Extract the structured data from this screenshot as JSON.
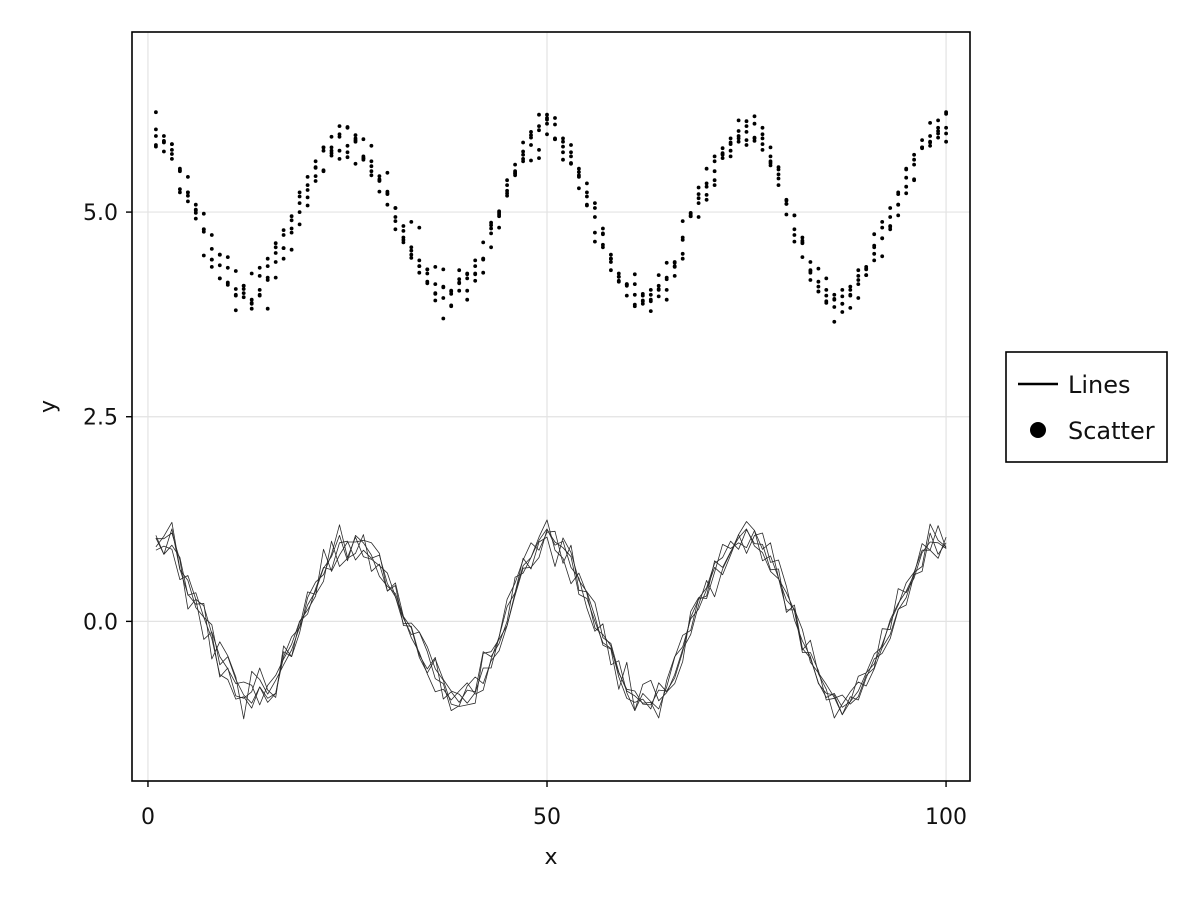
{
  "chart_data": {
    "type": "scatter",
    "title": "",
    "xlabel": "x",
    "ylabel": "y",
    "xlim": [
      -2,
      103
    ],
    "ylim": [
      -1.95,
      7.2
    ],
    "x_ticks": [
      0,
      50,
      100
    ],
    "x_tick_labels": [
      "0",
      "50",
      "100"
    ],
    "y_ticks": [
      0.0,
      2.5,
      5.0
    ],
    "y_tick_labels": [
      "0.0",
      "2.5",
      "5.0"
    ],
    "grid": true,
    "legend": {
      "placement": "right",
      "entries": [
        {
          "label": "Lines",
          "marker": "line"
        },
        {
          "label": "Scatter",
          "marker": "circle"
        }
      ]
    },
    "x": [
      1,
      2,
      3,
      4,
      5,
      6,
      7,
      8,
      9,
      10,
      11,
      12,
      13,
      14,
      15,
      16,
      17,
      18,
      19,
      20,
      21,
      22,
      23,
      24,
      25,
      26,
      27,
      28,
      29,
      30,
      31,
      32,
      33,
      34,
      35,
      36,
      37,
      38,
      39,
      40,
      41,
      42,
      43,
      44,
      45,
      46,
      47,
      48,
      49,
      50,
      51,
      52,
      53,
      54,
      55,
      56,
      57,
      58,
      59,
      60,
      61,
      62,
      63,
      64,
      65,
      66,
      67,
      68,
      69,
      70,
      71,
      72,
      73,
      74,
      75,
      76,
      77,
      78,
      79,
      80,
      81,
      82,
      83,
      84,
      85,
      86,
      87,
      88,
      89,
      90,
      91,
      92,
      93,
      94,
      95,
      96,
      97,
      98,
      99,
      100
    ],
    "lines": {
      "name": "Lines",
      "series": [
        [
          1.05,
          0.82,
          0.93,
          0.78,
          0.32,
          0.35,
          0.05,
          -0.04,
          -0.53,
          -0.43,
          -0.71,
          -0.9,
          -1.0,
          -0.8,
          -0.99,
          -0.88,
          -0.37,
          -0.43,
          -0.14,
          0.29,
          0.48,
          0.57,
          0.82,
          1.18,
          0.78,
          1.03,
          0.79,
          0.76,
          0.68,
          0.59,
          0.3,
          -0.03,
          -0.02,
          -0.13,
          -0.31,
          -0.58,
          -0.72,
          -1.01,
          -1.04,
          -1.02,
          -1.0,
          -0.39,
          -0.37,
          -0.22,
          -0.05,
          0.35,
          0.77,
          0.64,
          0.97,
          1.03,
          0.67,
          1.02,
          0.84,
          0.5,
          0.36,
          0.06,
          -0.29,
          -0.34,
          -0.83,
          -0.5,
          -1.09,
          -0.77,
          -0.72,
          -0.97,
          -0.87,
          -0.65,
          -0.34,
          -0.16,
          0.2,
          0.5,
          0.3,
          0.64,
          0.84,
          1.06,
          1.22,
          1.11,
          0.74,
          0.8,
          0.53,
          0.14,
          0.14,
          -0.35,
          -0.23,
          -0.64,
          -0.83,
          -1.18,
          -1.01,
          -0.86,
          -0.74,
          -0.79,
          -0.58,
          -0.32,
          -0.16,
          0.15,
          0.2,
          0.57,
          0.61,
          1.08,
          0.82,
          0.96
        ],
        [
          0.91,
          1.04,
          1.21,
          0.64,
          0.33,
          0.21,
          0.22,
          -0.46,
          -0.25,
          -0.42,
          -0.68,
          -1.19,
          -0.61,
          -0.71,
          -0.89,
          -0.72,
          -0.53,
          -0.35,
          -0.07,
          0.36,
          0.33,
          0.49,
          0.98,
          0.67,
          0.77,
          0.83,
          1.06,
          0.61,
          0.7,
          0.37,
          0.44,
          -0.05,
          -0.06,
          -0.41,
          -0.58,
          -0.44,
          -0.95,
          -0.86,
          -0.99,
          -0.84,
          -0.86,
          -0.37,
          -0.43,
          -0.27,
          -0.0,
          0.54,
          0.59,
          0.78,
          1.03,
          1.24,
          0.87,
          0.77,
          0.46,
          0.59,
          0.34,
          -0.08,
          -0.16,
          -0.3,
          -0.68,
          -0.94,
          -0.99,
          -0.95,
          -1.07,
          -0.75,
          -0.86,
          -0.76,
          -0.49,
          0.12,
          0.29,
          0.28,
          0.6,
          0.94,
          0.89,
          0.96,
          0.9,
          1.11,
          0.88,
          0.96,
          0.53,
          0.26,
          0.15,
          -0.1,
          -0.5,
          -0.63,
          -0.77,
          -0.93,
          -1.14,
          -0.92,
          -0.96,
          -0.69,
          -0.46,
          -0.39,
          -0.21,
          0.14,
          0.29,
          0.6,
          0.87,
          0.87,
          0.77,
          1.03
        ],
        [
          1.01,
          1.01,
          1.08,
          0.75,
          0.15,
          0.27,
          0.19,
          -0.15,
          -0.68,
          -0.57,
          -0.91,
          -0.94,
          -0.86,
          -0.57,
          -0.84,
          -0.93,
          -0.3,
          -0.43,
          -0.0,
          0.14,
          0.31,
          0.88,
          0.61,
          0.81,
          0.97,
          0.97,
          0.99,
          0.96,
          0.83,
          0.37,
          0.47,
          0.06,
          -0.08,
          -0.44,
          -0.63,
          -0.46,
          -0.71,
          -0.85,
          -0.89,
          -1.0,
          -0.87,
          -0.57,
          -0.57,
          -0.19,
          0.27,
          0.47,
          0.75,
          0.96,
          0.87,
          1.09,
          1.1,
          0.71,
          0.93,
          0.38,
          0.36,
          0.23,
          -0.2,
          -0.27,
          -0.62,
          -0.85,
          -0.91,
          -1.0,
          -0.99,
          -1.18,
          -0.72,
          -0.43,
          -0.31,
          0.03,
          0.15,
          0.39,
          0.66,
          0.57,
          0.81,
          1.06,
          0.83,
          1.05,
          1.08,
          0.72,
          0.75,
          0.43,
          0.02,
          -0.24,
          -0.43,
          -0.76,
          -0.88,
          -0.9,
          -1.14,
          -0.98,
          -0.85,
          -0.63,
          -0.52,
          -0.28,
          -0.01,
          0.2,
          0.47,
          0.6,
          0.67,
          1.19,
          0.99,
          0.91
        ],
        [
          0.87,
          0.92,
          0.88,
          0.51,
          0.56,
          0.27,
          -0.22,
          -0.13,
          -0.43,
          -0.58,
          -0.76,
          -0.74,
          -0.78,
          -1.02,
          -0.78,
          -0.66,
          -0.46,
          -0.28,
          0.0,
          0.09,
          0.4,
          0.66,
          0.63,
          0.96,
          0.98,
          0.75,
          0.87,
          0.77,
          0.81,
          0.46,
          0.3,
          0.04,
          -0.16,
          -0.13,
          -0.37,
          -0.7,
          -0.76,
          -1.09,
          -1.03,
          -0.79,
          -0.68,
          -0.76,
          -0.48,
          -0.36,
          -0.05,
          0.32,
          0.65,
          0.66,
          0.78,
          1.12,
          0.97,
          0.9,
          0.79,
          0.33,
          0.28,
          0.0,
          -0.26,
          -0.33,
          -0.63,
          -0.83,
          -0.85,
          -1.01,
          -1.02,
          -0.84,
          -0.85,
          -0.69,
          -0.37,
          0.05,
          0.27,
          0.31,
          0.74,
          0.66,
          0.85,
          1.02,
          1.13,
          0.92,
          0.84,
          0.61,
          0.52,
          0.35,
          0.13,
          -0.38,
          -0.38,
          -0.6,
          -0.96,
          -0.94,
          -0.9,
          -1.01,
          -0.92,
          -0.66,
          -0.57,
          -0.09,
          -0.1,
          0.4,
          0.35,
          0.53,
          0.84,
          0.97,
          0.96,
          0.89
        ],
        [
          1.02,
          0.82,
          1.13,
          0.63,
          0.5,
          0.17,
          0.05,
          -0.21,
          -0.65,
          -0.71,
          -0.95,
          -0.92,
          -1.06,
          -0.8,
          -0.94,
          -0.88,
          -0.43,
          -0.19,
          -0.08,
          0.2,
          0.37,
          0.65,
          0.79,
          1.05,
          0.74,
          1.05,
          0.96,
          0.81,
          0.55,
          0.43,
          0.34,
          0.06,
          -0.2,
          -0.38,
          -0.64,
          -0.86,
          -0.83,
          -0.96,
          -0.85,
          -0.75,
          -0.89,
          -0.84,
          -0.46,
          -0.19,
          0.18,
          0.35,
          0.68,
          0.78,
          0.99,
          1.13,
          0.93,
          0.98,
          0.66,
          0.53,
          0.16,
          -0.12,
          -0.03,
          -0.53,
          -0.48,
          -0.87,
          -1.09,
          -0.88,
          -0.98,
          -1.07,
          -0.8,
          -0.44,
          -0.17,
          -0.11,
          0.28,
          0.41,
          0.71,
          0.78,
          0.98,
          0.88,
          1.12,
          0.95,
          0.94,
          0.63,
          0.64,
          0.11,
          0.2,
          -0.33,
          -0.45,
          -0.75,
          -0.93,
          -0.88,
          -1.05,
          -0.98,
          -0.67,
          -0.63,
          -0.4,
          -0.31,
          0.02,
          0.22,
          0.37,
          0.57,
          0.95,
          0.87,
          1.17,
          0.89
        ]
      ]
    },
    "scatter": {
      "name": "Scatter",
      "series": [
        [
          6.01,
          5.74,
          5.65,
          5.53,
          5.13,
          4.92,
          4.76,
          4.72,
          4.19,
          4.45,
          3.98,
          4.1,
          3.88,
          4.32,
          4.2,
          4.2,
          4.56,
          4.75,
          5.0,
          5.18,
          5.55,
          5.5,
          5.75,
          5.65,
          5.81,
          5.88,
          5.68,
          5.56,
          5.4,
          5.48,
          5.05,
          4.83,
          4.88,
          4.81,
          4.3,
          4.33,
          4.3,
          4.03,
          4.18,
          4.04,
          4.16,
          4.43,
          4.57,
          4.97,
          5.2,
          5.47,
          5.74,
          5.63,
          5.66,
          6.15,
          6.15,
          5.86,
          5.73,
          5.49,
          5.24,
          5.05,
          4.57,
          4.39,
          4.21,
          4.11,
          4.24,
          4.0,
          3.79,
          4.05,
          4.2,
          4.34,
          4.69,
          4.95,
          5.3,
          5.35,
          5.39,
          5.7,
          5.68,
          5.99,
          5.82,
          6.17,
          6.03,
          5.6,
          5.41,
          5.1,
          4.79,
          4.45,
          4.17,
          4.03,
          4.19,
          3.93,
          3.88,
          3.83,
          4.17,
          4.23,
          4.49,
          4.46,
          4.79,
          4.96,
          5.23,
          5.7,
          5.79,
          5.85,
          6.12,
          6.03
        ],
        [
          5.93,
          5.93,
          5.76,
          5.24,
          5.24,
          5.02,
          4.79,
          4.33,
          4.48,
          4.32,
          4.06,
          4.06,
          3.89,
          4.22,
          4.17,
          4.39,
          4.43,
          4.54,
          5.11,
          5.43,
          5.54,
          5.79,
          5.79,
          6.05,
          6.03,
          5.9,
          5.64,
          5.81,
          5.44,
          5.23,
          4.94,
          4.66,
          4.53,
          4.34,
          4.25,
          4.01,
          4.09,
          3.85,
          4.13,
          3.93,
          4.41,
          4.26,
          4.87,
          4.95,
          5.39,
          5.45,
          5.85,
          5.94,
          5.76,
          6.19,
          5.89,
          5.9,
          5.82,
          5.29,
          5.19,
          4.94,
          4.73,
          4.48,
          4.21,
          4.12,
          3.87,
          3.88,
          3.93,
          4.23,
          3.93,
          4.38,
          4.66,
          4.98,
          5.22,
          5.21,
          5.62,
          5.71,
          5.75,
          5.93,
          6.11,
          5.91,
          5.95,
          5.62,
          5.46,
          5.14,
          4.96,
          4.69,
          4.29,
          4.03,
          3.89,
          3.84,
          3.88,
          4.09,
          4.12,
          4.33,
          4.59,
          4.68,
          4.83,
          5.09,
          5.53,
          5.4,
          5.79,
          6.09,
          5.96,
          6.22
        ],
        [
          6.22,
          5.87,
          5.83,
          5.51,
          5.24,
          4.99,
          4.47,
          4.42,
          4.35,
          4.14,
          3.8,
          4.1,
          3.82,
          3.98,
          4.43,
          4.62,
          4.56,
          4.8,
          5.19,
          5.27,
          5.38,
          5.75,
          5.92,
          5.75,
          5.67,
          5.59,
          5.89,
          5.45,
          5.39,
          5.25,
          5.05,
          4.69,
          4.44,
          4.34,
          4.15,
          3.92,
          3.7,
          4.04,
          4.04,
          4.25,
          4.25,
          4.43,
          4.8,
          4.99,
          5.26,
          5.48,
          5.65,
          5.98,
          6.05,
          5.95,
          6.07,
          5.73,
          5.6,
          5.43,
          5.09,
          4.75,
          4.74,
          4.29,
          4.16,
          4.1,
          3.85,
          3.91,
          3.99,
          4.06,
          4.38,
          4.39,
          4.89,
          4.99,
          4.94,
          5.31,
          5.5,
          5.66,
          5.85,
          5.9,
          5.98,
          5.87,
          5.9,
          5.79,
          5.55,
          5.1,
          4.72,
          4.62,
          4.26,
          4.15,
          3.98,
          3.94,
          3.78,
          4.05,
          3.95,
          4.3,
          4.57,
          4.81,
          4.82,
          5.24,
          5.42,
          5.39,
          5.78,
          5.81,
          5.99,
          5.86
        ],
        [
          5.8,
          5.85,
          5.83,
          5.28,
          5.2,
          5.09,
          4.79,
          4.55,
          4.19,
          4.13,
          3.99,
          3.96,
          4.25,
          4.05,
          3.82,
          4.5,
          4.72,
          4.95,
          4.85,
          5.08,
          5.62,
          5.79,
          5.69,
          5.95,
          5.73,
          5.94,
          5.66,
          5.62,
          5.38,
          5.22,
          4.89,
          4.63,
          4.48,
          4.41,
          4.3,
          4.12,
          4.08,
          3.86,
          4.14,
          4.24,
          4.24,
          4.63,
          4.84,
          4.81,
          5.23,
          5.5,
          5.7,
          5.82,
          6.19,
          6.13,
          5.9,
          5.8,
          5.68,
          5.45,
          5.35,
          4.64,
          4.8,
          4.43,
          4.25,
          4.12,
          4.12,
          3.98,
          3.91,
          4.1,
          4.05,
          4.33,
          4.43,
          4.96,
          5.17,
          5.15,
          5.33,
          5.72,
          5.9,
          5.86,
          6.05,
          5.9,
          5.83,
          5.68,
          5.33,
          5.15,
          4.64,
          4.63,
          4.39,
          4.09,
          4.05,
          3.66,
          4.05,
          3.99,
          4.29,
          4.23,
          4.73,
          4.88,
          5.05,
          5.22,
          5.31,
          5.64,
          5.79,
          5.93,
          5.91,
          6.2
        ],
        [
          5.82,
          5.86,
          5.71,
          5.5,
          5.43,
          5.03,
          4.98,
          4.42,
          4.48,
          4.11,
          4.28,
          4.01,
          3.93,
          3.99,
          4.34,
          4.57,
          4.78,
          4.9,
          5.24,
          5.33,
          5.44,
          5.51,
          5.72,
          5.92,
          6.04,
          5.86,
          5.66,
          5.5,
          5.25,
          5.09,
          4.79,
          4.77,
          4.57,
          4.26,
          4.13,
          4.0,
          3.95,
          4.0,
          4.29,
          4.19,
          4.34,
          4.42,
          4.74,
          5.01,
          5.33,
          5.58,
          5.62,
          5.91,
          6.0,
          6.08,
          5.89,
          5.64,
          5.59,
          5.53,
          5.08,
          5.11,
          4.6,
          4.43,
          4.15,
          3.98,
          3.99,
          3.92,
          4.05,
          3.97,
          4.18,
          4.22,
          4.49,
          4.95,
          5.11,
          5.53,
          5.68,
          5.78,
          5.83,
          6.12,
          5.88,
          6.08,
          5.76,
          5.57,
          5.52,
          4.97,
          4.96,
          4.65,
          4.28,
          4.31,
          3.91,
          3.99,
          3.97,
          3.98,
          4.22,
          4.31,
          4.41,
          4.68,
          4.94,
          5.09,
          5.52,
          5.58,
          5.88,
          5.86,
          6.03,
          5.96
        ]
      ]
    }
  }
}
